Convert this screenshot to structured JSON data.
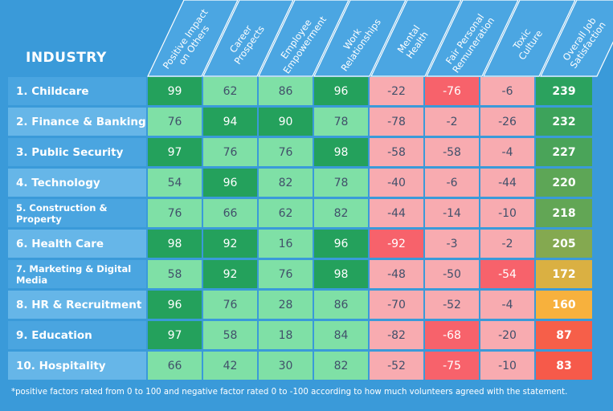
{
  "chart_data": {
    "type": "table",
    "row_header": "INDUSTRY",
    "columns": [
      [
        "Positive Impact",
        "on Others"
      ],
      [
        "Career",
        "Prospects"
      ],
      [
        "Employee",
        "Empowerment"
      ],
      [
        "Work",
        "Relationships"
      ],
      [
        "Mental",
        "Health"
      ],
      [
        "Fair Personal",
        "Remuneration"
      ],
      [
        "Toxic",
        "Culture"
      ],
      [
        "Overall Job",
        "Satisfaction"
      ]
    ],
    "rows": [
      {
        "name": "1. Childcare",
        "values": [
          99,
          62,
          86,
          96,
          -22,
          -76,
          -6
        ],
        "total": 239
      },
      {
        "name": "2. Finance & Banking",
        "values": [
          76,
          94,
          90,
          78,
          -78,
          -2,
          -26
        ],
        "total": 232
      },
      {
        "name": "3. Public Security",
        "values": [
          97,
          76,
          76,
          98,
          -58,
          -58,
          -4
        ],
        "total": 227
      },
      {
        "name": "4. Technology",
        "values": [
          54,
          96,
          82,
          78,
          -40,
          -6,
          -44
        ],
        "total": 220
      },
      {
        "name": "5. Construction & Property",
        "values": [
          76,
          66,
          62,
          82,
          -44,
          -14,
          -10
        ],
        "total": 218
      },
      {
        "name": "6. Health Care",
        "values": [
          98,
          92,
          16,
          96,
          -92,
          -3,
          -2
        ],
        "total": 205
      },
      {
        "name": "7. Marketing & Digital Media",
        "values": [
          58,
          92,
          76,
          98,
          -48,
          -50,
          -54
        ],
        "total": 172
      },
      {
        "name": "8. HR & Recruitment",
        "values": [
          96,
          76,
          28,
          86,
          -70,
          -52,
          -4
        ],
        "total": 160
      },
      {
        "name": "9. Education",
        "values": [
          97,
          58,
          18,
          84,
          -82,
          -68,
          -20
        ],
        "total": 87
      },
      {
        "name": "10. Hospitality",
        "values": [
          66,
          42,
          30,
          82,
          -52,
          -75,
          -10
        ],
        "total": 83
      }
    ],
    "highlight_threshold_positive": 90,
    "highlight_threshold_negative": -54,
    "total_color_scale": [
      "#f65a4a",
      "#f7b23d",
      "#2ba25e"
    ],
    "footnote": "*positive factors rated from 0 to 100 and negative factor rated 0 to -100 according to how much volunteers agreed with the statement."
  }
}
